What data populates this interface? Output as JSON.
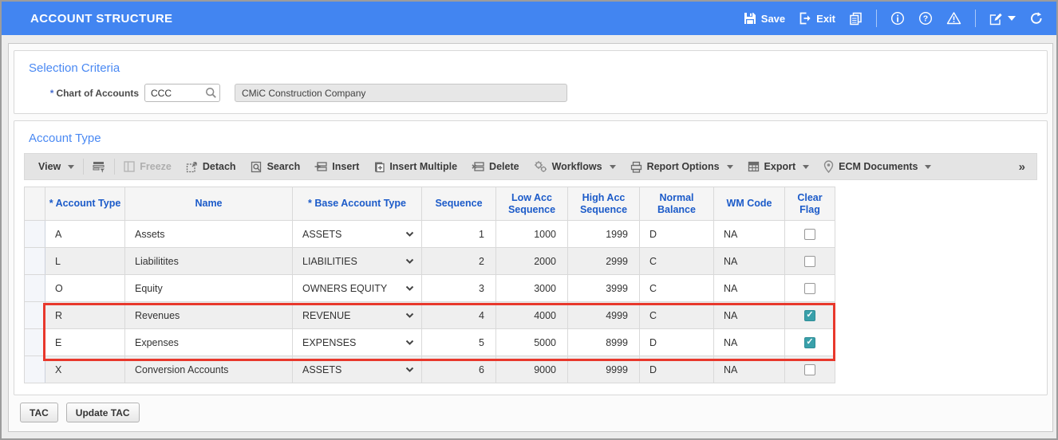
{
  "titlebar": {
    "title": "ACCOUNT STRUCTURE",
    "save_label": "Save",
    "exit_label": "Exit"
  },
  "selection_criteria": {
    "heading": "Selection Criteria",
    "required_marker": "*",
    "chart_of_accounts_label": "Chart of Accounts",
    "chart_of_accounts_value": "CCC",
    "chart_of_accounts_description": "CMiC Construction Company"
  },
  "account_type": {
    "heading": "Account Type",
    "toolbar": {
      "view": "View",
      "freeze": "Freeze",
      "detach": "Detach",
      "search": "Search",
      "insert": "Insert",
      "insert_multiple": "Insert Multiple",
      "delete": "Delete",
      "workflows": "Workflows",
      "report_options": "Report Options",
      "export": "Export",
      "ecm_documents": "ECM Documents",
      "overflow": "»"
    },
    "table": {
      "columns": {
        "account_type": "* Account Type",
        "name": "Name",
        "base_account_type": "* Base Account Type",
        "sequence": "Sequence",
        "low_acc_sequence": "Low Acc Sequence",
        "high_acc_sequence": "High Acc Sequence",
        "normal_balance": "Normal Balance",
        "wm_code": "WM Code",
        "clear_flag": "Clear Flag"
      },
      "rows": [
        {
          "account_type": "A",
          "name": "Assets",
          "base_account_type": "ASSETS",
          "sequence": "1",
          "low_acc_sequence": "1000",
          "high_acc_sequence": "1999",
          "normal_balance": "D",
          "wm_code": "NA",
          "clear_flag": false
        },
        {
          "account_type": "L",
          "name": "Liabilitites",
          "base_account_type": "LIABILITIES",
          "sequence": "2",
          "low_acc_sequence": "2000",
          "high_acc_sequence": "2999",
          "normal_balance": "C",
          "wm_code": "NA",
          "clear_flag": false
        },
        {
          "account_type": "O",
          "name": "Equity",
          "base_account_type": "OWNERS EQUITY",
          "sequence": "3",
          "low_acc_sequence": "3000",
          "high_acc_sequence": "3999",
          "normal_balance": "C",
          "wm_code": "NA",
          "clear_flag": false
        },
        {
          "account_type": "R",
          "name": "Revenues",
          "base_account_type": "REVENUE",
          "sequence": "4",
          "low_acc_sequence": "4000",
          "high_acc_sequence": "4999",
          "normal_balance": "C",
          "wm_code": "NA",
          "clear_flag": true
        },
        {
          "account_type": "E",
          "name": "Expenses",
          "base_account_type": "EXPENSES",
          "sequence": "5",
          "low_acc_sequence": "5000",
          "high_acc_sequence": "8999",
          "normal_balance": "D",
          "wm_code": "NA",
          "clear_flag": true
        },
        {
          "account_type": "X",
          "name": "Conversion Accounts",
          "base_account_type": "ASSETS",
          "sequence": "6",
          "low_acc_sequence": "9000",
          "high_acc_sequence": "9999",
          "normal_balance": "D",
          "wm_code": "NA",
          "clear_flag": false
        }
      ]
    }
  },
  "footer": {
    "tac_label": "TAC",
    "update_tac_label": "Update TAC"
  },
  "colors": {
    "header_bar": "#4285f1",
    "section_heading": "#4a89f3",
    "column_header_text": "#1c5bc9",
    "checkbox_checked": "#39a0aa",
    "highlight_box": "#e8382c"
  }
}
